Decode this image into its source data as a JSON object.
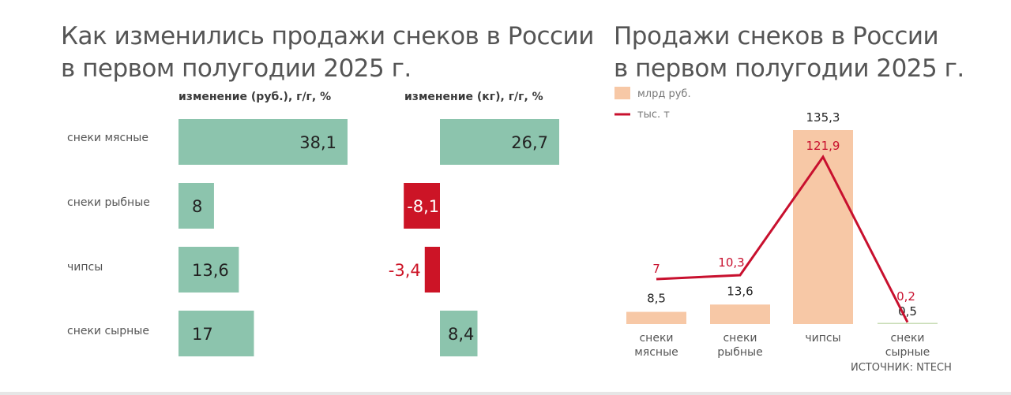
{
  "left": {
    "title": [
      "Как изменились продажи снеков в России",
      "в первом полугодии 2025 г."
    ],
    "header_rub": "изменение (руб.), г/г, %",
    "header_kg": "изменение (кг), г/г, %"
  },
  "right": {
    "title": [
      "Продажи снеков в России",
      "в первом полугодии 2025 г."
    ],
    "legend_bar": "млрд руб.",
    "legend_line": "тыс. т",
    "source": "ИСТОЧНИК: NTECH"
  },
  "chart_data": [
    {
      "type": "bar",
      "orientation": "horizontal",
      "title": "Как изменились продажи снеков в России в первом полугодии 2025 г.",
      "categories": [
        "снеки мясные",
        "снеки рыбные",
        "чипсы",
        "снеки сырные"
      ],
      "series": [
        {
          "name": "изменение (руб.), г/г, %",
          "values": [
            38.1,
            8,
            13.6,
            17
          ],
          "labels": [
            "38,1",
            "8",
            "13,6",
            "17"
          ]
        },
        {
          "name": "изменение (кг), г/г, %",
          "values": [
            26.7,
            -8.1,
            -3.4,
            8.4
          ],
          "labels": [
            "26,7",
            "-8,1",
            "-3,4",
            "8,4"
          ]
        }
      ],
      "colors": {
        "positive": "#8cc4ad",
        "negative": "#cc1426"
      }
    },
    {
      "type": "bar",
      "combo": "bar+line",
      "title": "Продажи снеков в России в первом полугодии 2025 г.",
      "categories": [
        [
          "снеки",
          "мясные"
        ],
        [
          "снеки",
          "рыбные"
        ],
        [
          "чипсы"
        ],
        [
          "снеки",
          "сырные"
        ]
      ],
      "series": [
        {
          "name": "млрд руб.",
          "type": "bar",
          "values": [
            8.5,
            13.6,
            135.3,
            0.5
          ],
          "labels": [
            "8,5",
            "13,6",
            "135,3",
            "0,5"
          ],
          "color": "#f7c8a6"
        },
        {
          "name": "тыс. т",
          "type": "line",
          "values": [
            7,
            10.3,
            121.9,
            0.2
          ],
          "labels": [
            "7",
            "10,3",
            "121,9",
            "0,2"
          ],
          "color": "#c8102e"
        }
      ]
    }
  ]
}
